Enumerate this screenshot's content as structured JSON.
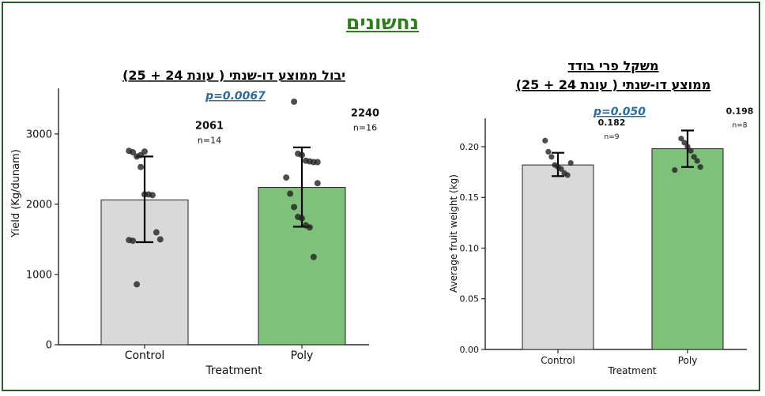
{
  "page": {
    "title": "נחשונים",
    "colors": {
      "frame": "#2e5b2e",
      "title": "#2e7d1e",
      "pvalue": "#2e6a9a",
      "control_bar": "#d9d9d9",
      "poly_bar": "#7fc07a"
    }
  },
  "chart_data": [
    {
      "type": "bar",
      "title": "יבול ממוצע דו-שנתי ( עונת 24 + 25)",
      "annotation": "p=0.0067",
      "xlabel": "Treatment",
      "ylabel": "Yield (Kg/dunam)",
      "categories": [
        "Control",
        "Poly"
      ],
      "values": [
        2061,
        2240
      ],
      "value_labels": [
        "2061",
        "2240"
      ],
      "n_labels": [
        "n=14",
        "n=16"
      ],
      "error_low": [
        1460,
        1680
      ],
      "error_high": [
        2680,
        2810
      ],
      "ylim": [
        0,
        3650
      ],
      "yticks": [
        0,
        1000,
        2000,
        3000
      ],
      "ytick_labels": [
        "0",
        "1000",
        "2000",
        "3000"
      ],
      "points": [
        [
          2760,
          2740,
          2680,
          2530,
          2140,
          2140,
          2130,
          1600,
          1500,
          1490,
          1480,
          860,
          2700,
          2750
        ],
        [
          3460,
          2720,
          2700,
          2620,
          2610,
          2600,
          2600,
          2380,
          2150,
          1960,
          1820,
          1800,
          1700,
          1670,
          1250,
          2300
        ]
      ],
      "grid": false
    },
    {
      "type": "bar",
      "title": "משקל פרי בודד",
      "subtitle": "ממוצע דו-שנתי ( עונת 24 + 25)",
      "annotation": "p=0.050",
      "xlabel": "Treatment",
      "ylabel": "Average fruit weight (kg)",
      "categories": [
        "Control",
        "Poly"
      ],
      "values": [
        0.182,
        0.198
      ],
      "value_labels": [
        "0.182",
        "0.198"
      ],
      "n_labels": [
        "n=9",
        "n=8"
      ],
      "error_low": [
        0.171,
        0.18
      ],
      "error_high": [
        0.194,
        0.216
      ],
      "ylim": [
        0,
        0.228
      ],
      "yticks": [
        0,
        0.05,
        0.1,
        0.15,
        0.2
      ],
      "ytick_labels": [
        "0.00",
        "0.05",
        "0.10",
        "0.15",
        "0.20"
      ],
      "points": [
        [
          0.206,
          0.195,
          0.19,
          0.182,
          0.18,
          0.178,
          0.174,
          0.172,
          0.184
        ],
        [
          0.208,
          0.204,
          0.2,
          0.196,
          0.19,
          0.186,
          0.18,
          0.177
        ]
      ],
      "grid": false
    }
  ]
}
